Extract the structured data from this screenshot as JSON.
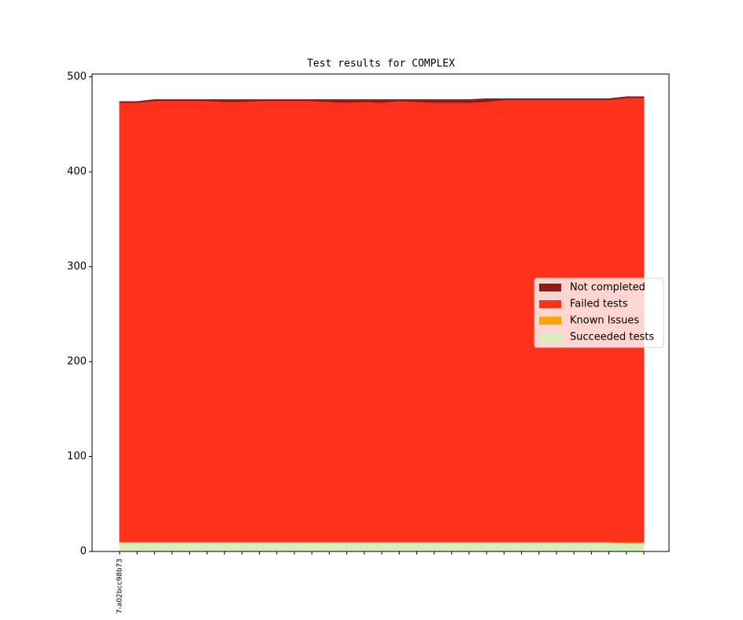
{
  "chart_data": {
    "type": "stacked_area",
    "title": "Test results for COMPLEX",
    "categories": [
      "7-a02bcc98b73",
      null,
      null,
      null,
      null,
      null,
      null,
      null,
      null,
      null,
      null,
      null,
      null,
      null,
      null,
      null,
      null,
      null,
      null,
      null,
      null,
      null,
      null,
      null,
      null,
      null,
      null,
      null,
      null,
      null,
      null
    ],
    "series": [
      {
        "name": "Succeeded tests",
        "color": "#d4efbd",
        "values": [
          10,
          10,
          10,
          10,
          10,
          10,
          10,
          10,
          10,
          10,
          10,
          10,
          10,
          10,
          10,
          10,
          10,
          10,
          10,
          10,
          10,
          10,
          10,
          10,
          10,
          10,
          10,
          10,
          10,
          9,
          9
        ]
      },
      {
        "name": "Known Issues",
        "color": "#ffa500",
        "values": [
          0,
          0,
          0,
          0,
          0,
          0,
          0,
          0,
          0,
          0,
          0,
          0,
          0,
          0,
          0,
          0,
          0,
          0,
          0,
          0,
          0,
          0,
          0,
          0,
          0,
          0,
          0,
          0,
          0,
          1,
          1
        ]
      },
      {
        "name": "Failed tests",
        "color": "#ff311a",
        "values": [
          463,
          463,
          465,
          465,
          465,
          465,
          464,
          464,
          465,
          465,
          465,
          465,
          464,
          463,
          464,
          463,
          465,
          464,
          463,
          463,
          463,
          464,
          466,
          466,
          466,
          466,
          466,
          466,
          466,
          468,
          468
        ]
      },
      {
        "name": "Not completed",
        "color": "#8b1c1c",
        "values": [
          1,
          1,
          1,
          1,
          1,
          1,
          2,
          2,
          1,
          1,
          1,
          1,
          2,
          3,
          2,
          3,
          1,
          2,
          3,
          3,
          3,
          3,
          1,
          1,
          1,
          1,
          1,
          1,
          1,
          1,
          1
        ]
      }
    ],
    "ylim": [
      0,
      503
    ],
    "yticks": [
      0,
      100,
      200,
      300,
      400,
      500
    ],
    "legend": "center right"
  }
}
